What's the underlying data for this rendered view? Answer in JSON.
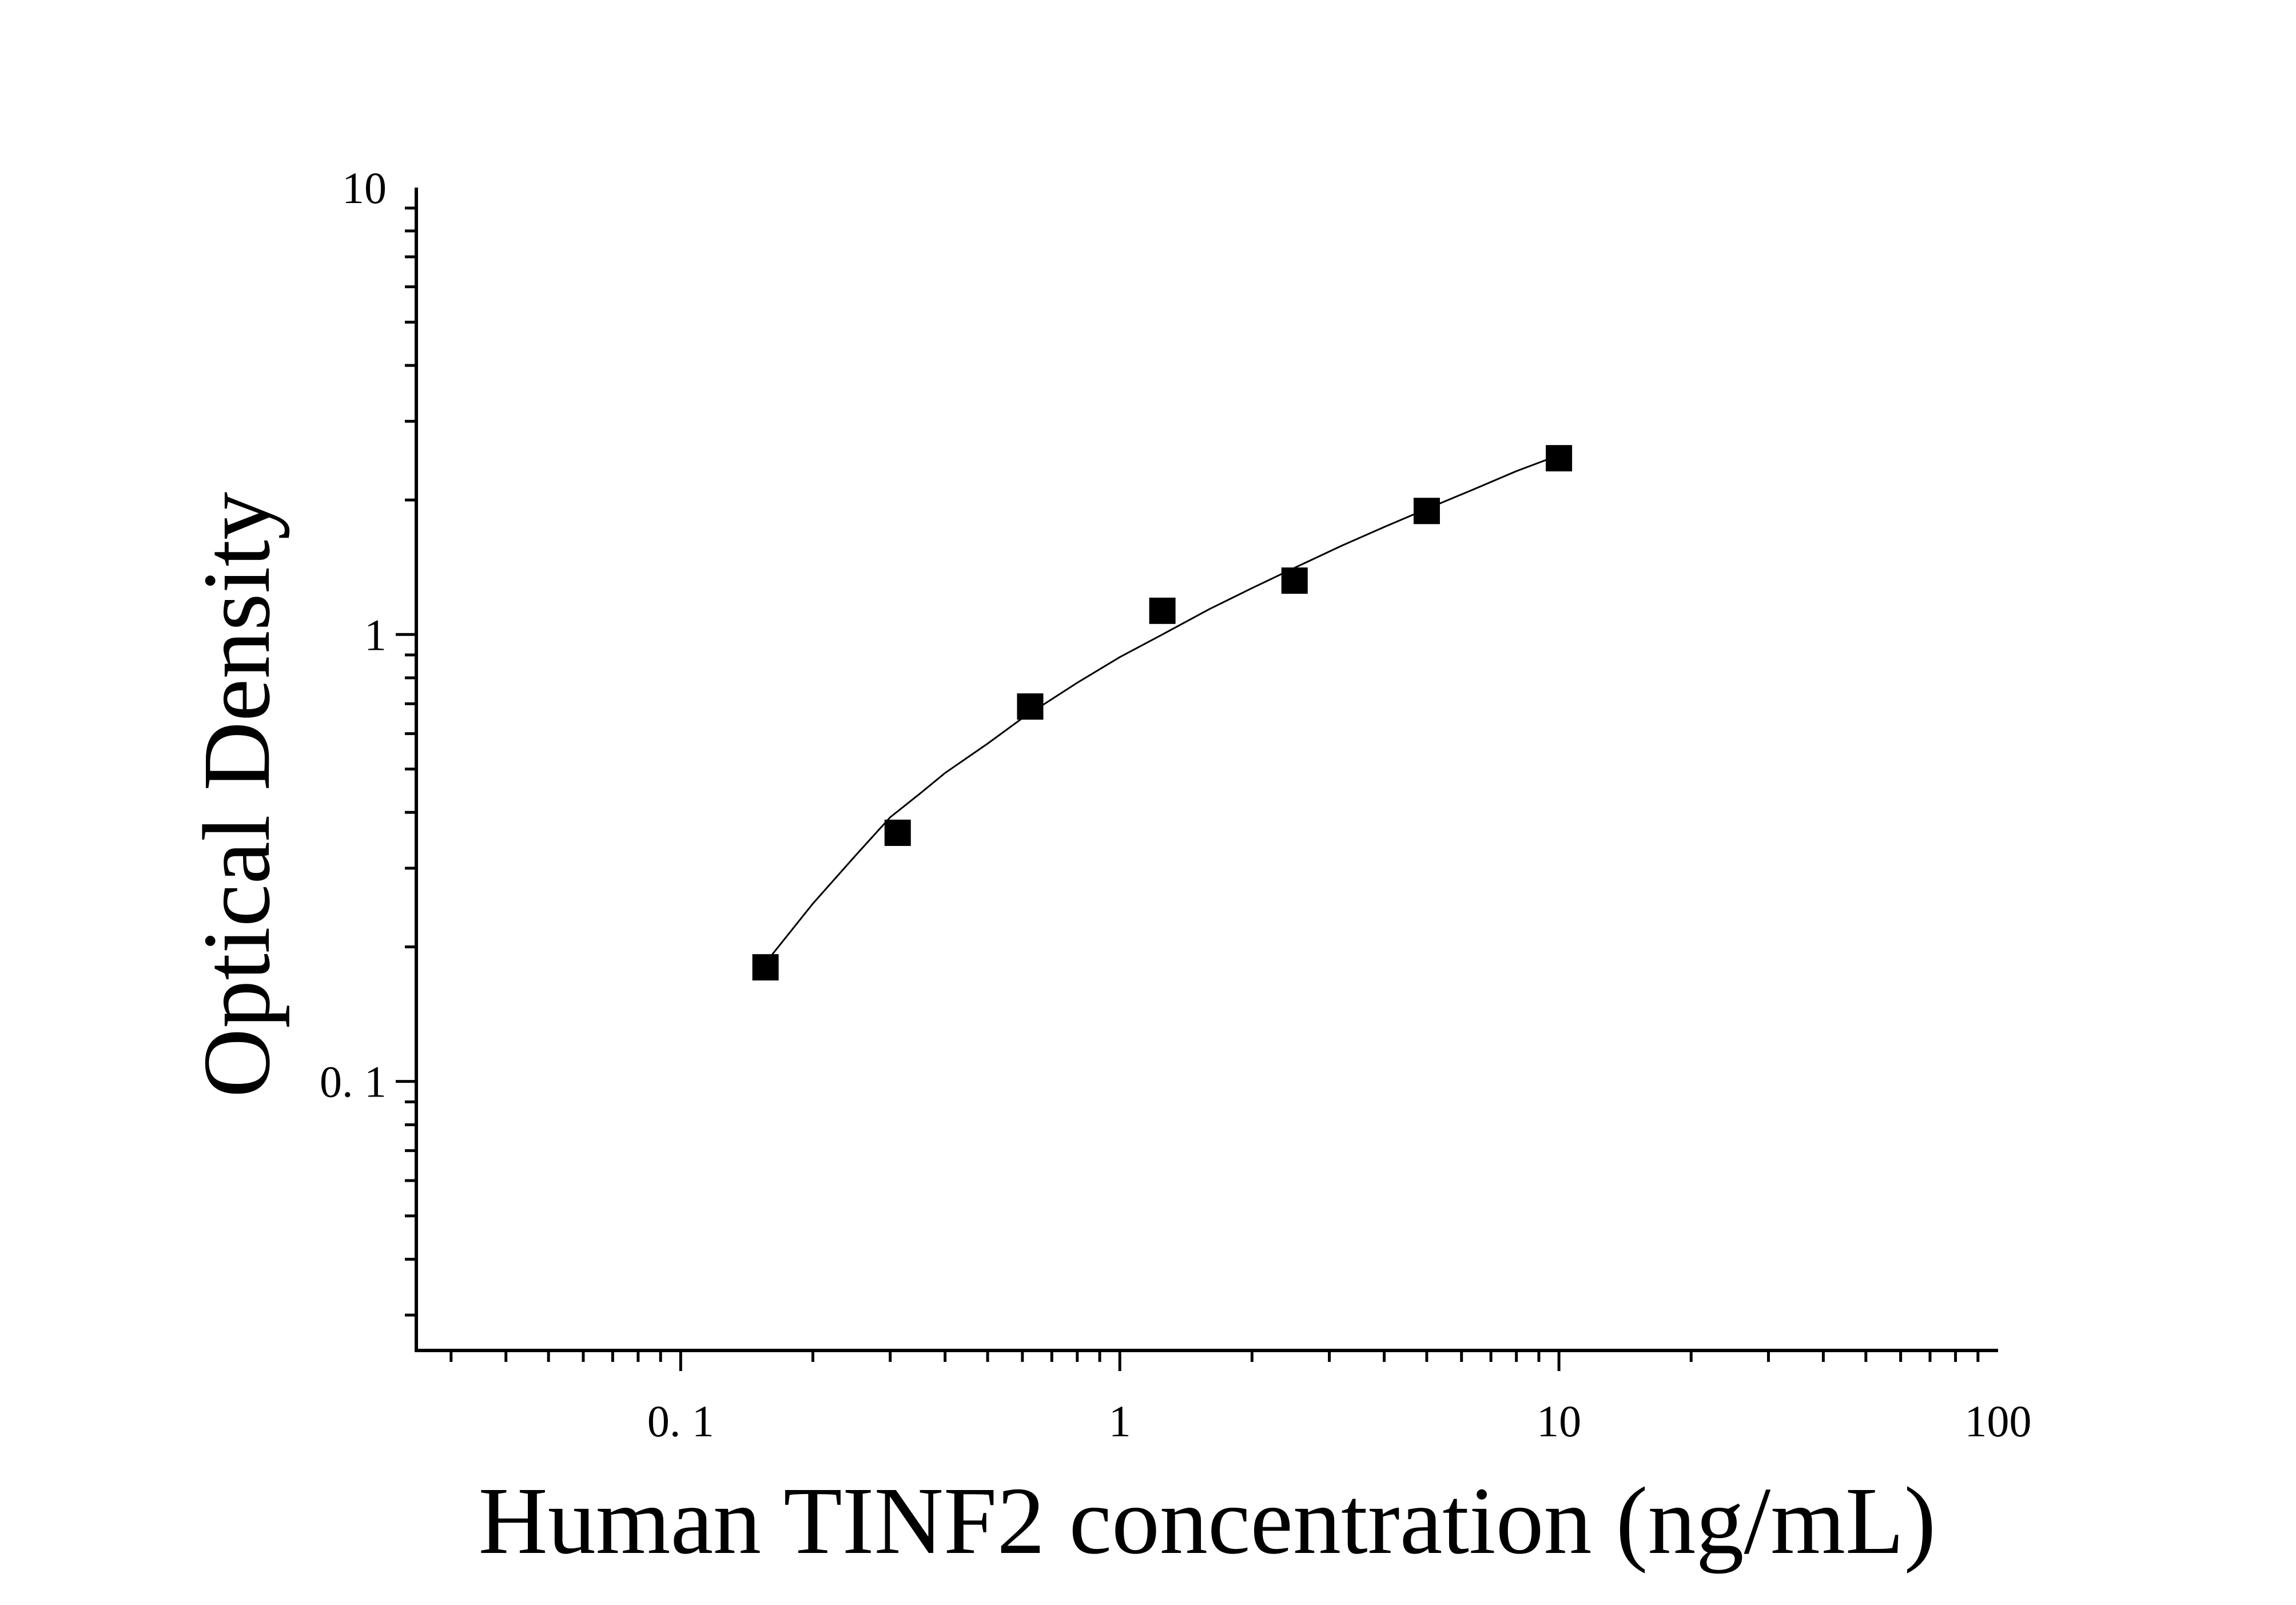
{
  "chart_data": {
    "type": "scatter",
    "title": "",
    "xlabel": "Human TINF2 concentration (ng/mL)",
    "ylabel": "Optical Density",
    "x_scale": "log",
    "y_scale": "log",
    "xlim": [
      0.025,
      100
    ],
    "ylim": [
      0.025,
      10
    ],
    "x_ticks": [
      {
        "value": 0.1,
        "label": "0. 1"
      },
      {
        "value": 1,
        "label": "1"
      },
      {
        "value": 10,
        "label": "10"
      },
      {
        "value": 100,
        "label": "100"
      }
    ],
    "y_ticks": [
      {
        "value": 0.1,
        "label": "0. 1"
      },
      {
        "value": 1,
        "label": "1"
      },
      {
        "value": 10,
        "label": "10"
      }
    ],
    "grid": false,
    "legend": "none",
    "colors": {
      "marker": "#000000",
      "line": "#000000",
      "axis": "#000000"
    },
    "series": [
      {
        "type": "scatter",
        "marker": "square",
        "x": [
          0.156,
          0.312,
          0.625,
          1.25,
          2.5,
          5,
          10
        ],
        "y": [
          0.18,
          0.36,
          0.69,
          1.13,
          1.32,
          1.89,
          2.48
        ]
      },
      {
        "type": "line",
        "fit": "curve",
        "x": [
          0.16,
          0.2,
          0.25,
          0.3,
          0.35,
          0.4,
          0.5,
          0.6,
          0.8,
          1.0,
          1.25,
          1.6,
          2.0,
          2.5,
          3.2,
          4.0,
          5.0,
          6.3,
          8.0,
          10.0
        ],
        "y": [
          0.19,
          0.25,
          0.32,
          0.39,
          0.44,
          0.49,
          0.57,
          0.65,
          0.78,
          0.89,
          1.0,
          1.14,
          1.27,
          1.41,
          1.58,
          1.74,
          1.91,
          2.1,
          2.32,
          2.52
        ]
      }
    ]
  }
}
